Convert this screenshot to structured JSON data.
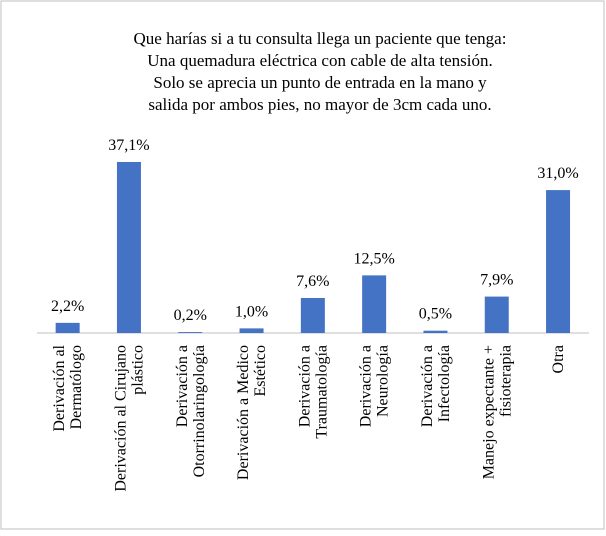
{
  "chart_data": {
    "type": "bar",
    "title": [
      "Que harías si a tu consulta llega un paciente que tenga:",
      "Una quemadura eléctrica con cable de alta tensión.",
      "Solo se aprecia un punto de entrada en la mano y",
      "salida por ambos pies, no mayor de 3cm cada uno."
    ],
    "categories": [
      [
        "Derivación al",
        "Dermatólogo"
      ],
      [
        "Derivación al Cirujano",
        "plástico"
      ],
      [
        "Derivación a",
        "Otorrinolaringología"
      ],
      [
        "Derivación a Medico",
        "Estético"
      ],
      [
        "Derivación a",
        "Traumatología"
      ],
      [
        "Derivación a",
        "Neurología"
      ],
      [
        "Derivación a",
        "Infectología"
      ],
      [
        "Manejo expectante +",
        "fisioterapia"
      ],
      [
        "Otra"
      ]
    ],
    "values": [
      2.2,
      37.1,
      0.2,
      1.0,
      7.6,
      12.5,
      0.5,
      7.9,
      31.0
    ],
    "value_labels": [
      "2,2%",
      "37,1%",
      "0,2%",
      "1,0%",
      "7,6%",
      "12,5%",
      "0,5%",
      "7,9%",
      "31,0%"
    ],
    "color": "#4472c4"
  }
}
